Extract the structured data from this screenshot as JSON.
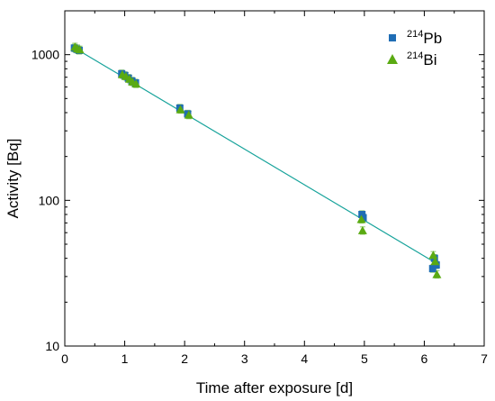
{
  "colors": {
    "pb": "#1f6db5",
    "bi": "#5aaa12",
    "fit": "#17a39b",
    "axis": "#000000",
    "errorbar": "#8fc96a"
  },
  "legend": {
    "placement": "top-right",
    "pb_sup": "214",
    "pb_label": "Pb",
    "bi_sup": "214",
    "bi_label": "Bi"
  },
  "chart_data": {
    "type": "scatter",
    "title": "",
    "xlabel": "Time after exposure [d]",
    "ylabel": "Activity [Bq]",
    "xlim": [
      0,
      7
    ],
    "ylim": [
      10,
      2000
    ],
    "yscale": "log",
    "grid": false,
    "x_ticks": [
      "0",
      "1",
      "2",
      "3",
      "4",
      "5",
      "6",
      "7"
    ],
    "y_ticks": [
      {
        "value": 10,
        "label": "10"
      },
      {
        "value": 100,
        "label": "100"
      },
      {
        "value": 1000,
        "label": "1000"
      }
    ],
    "series": [
      {
        "name": "214Pb",
        "marker": "square",
        "points": [
          {
            "x": 0.16,
            "y": 1110
          },
          {
            "x": 0.2,
            "y": 1090
          },
          {
            "x": 0.24,
            "y": 1070
          },
          {
            "x": 0.95,
            "y": 740
          },
          {
            "x": 1.0,
            "y": 720
          },
          {
            "x": 1.06,
            "y": 690
          },
          {
            "x": 1.12,
            "y": 660
          },
          {
            "x": 1.18,
            "y": 640
          },
          {
            "x": 1.92,
            "y": 430
          },
          {
            "x": 2.05,
            "y": 392
          },
          {
            "x": 4.96,
            "y": 80
          },
          {
            "x": 4.98,
            "y": 76
          },
          {
            "x": 6.14,
            "y": 34
          },
          {
            "x": 6.17,
            "y": 40
          },
          {
            "x": 6.2,
            "y": 36
          }
        ]
      },
      {
        "name": "214Bi",
        "marker": "triangle",
        "points": [
          {
            "x": 0.17,
            "y": 1130
          },
          {
            "x": 0.21,
            "y": 1100
          },
          {
            "x": 0.25,
            "y": 1080
          },
          {
            "x": 0.96,
            "y": 730
          },
          {
            "x": 1.02,
            "y": 710
          },
          {
            "x": 1.08,
            "y": 680
          },
          {
            "x": 1.13,
            "y": 650
          },
          {
            "x": 1.19,
            "y": 630
          },
          {
            "x": 1.93,
            "y": 420
          },
          {
            "x": 2.07,
            "y": 385
          },
          {
            "x": 4.95,
            "y": 74
          },
          {
            "x": 4.97,
            "y": 62
          },
          {
            "x": 6.15,
            "y": 42
          },
          {
            "x": 6.18,
            "y": 38
          },
          {
            "x": 6.21,
            "y": 31
          }
        ]
      }
    ],
    "fit_line": {
      "x": [
        0.15,
        6.2
      ],
      "y": [
        1120,
        37
      ]
    }
  }
}
